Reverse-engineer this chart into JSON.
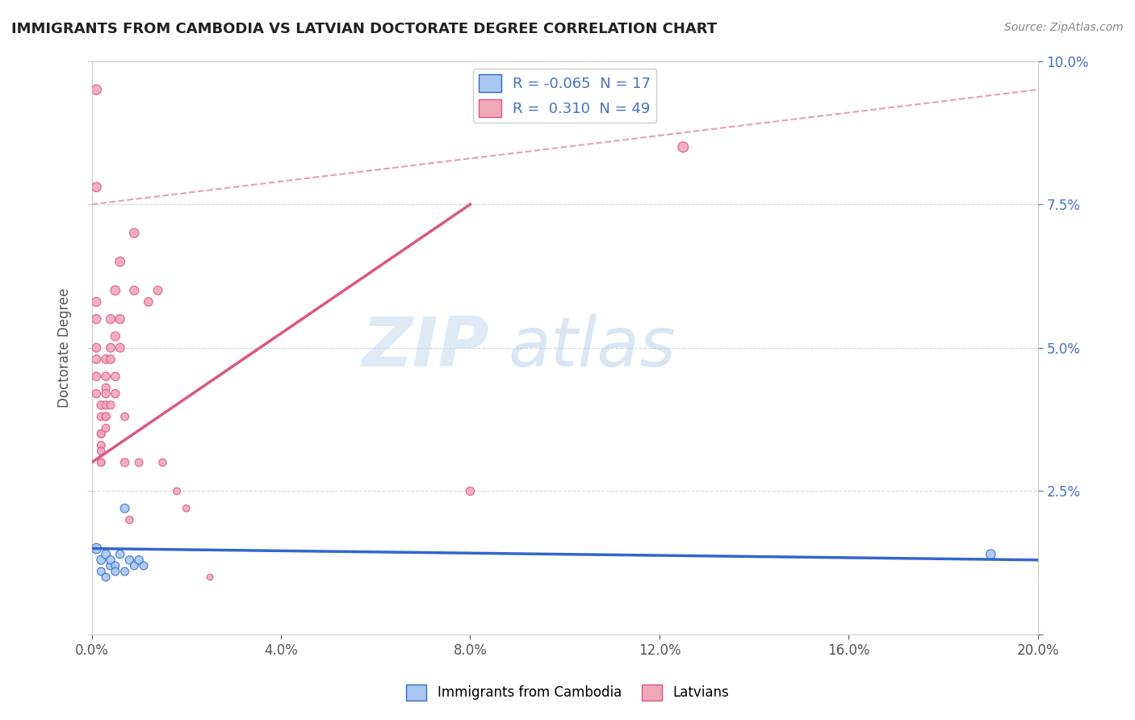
{
  "title": "IMMIGRANTS FROM CAMBODIA VS LATVIAN DOCTORATE DEGREE CORRELATION CHART",
  "source": "Source: ZipAtlas.com",
  "ylabel": "Doctorate Degree",
  "xlim": [
    0.0,
    0.2
  ],
  "ylim": [
    0.0,
    0.1
  ],
  "xticks": [
    0.0,
    0.04,
    0.08,
    0.12,
    0.16,
    0.2
  ],
  "yticks": [
    0.0,
    0.025,
    0.05,
    0.075,
    0.1
  ],
  "legend_R1": "-0.065",
  "legend_N1": "17",
  "legend_R2": "0.310",
  "legend_N2": "49",
  "blue_color": "#A8C8F0",
  "pink_color": "#F0A8B8",
  "blue_line_color": "#3366CC",
  "pink_line_color": "#DD5588",
  "dash_line_color": "#E8A0B0",
  "watermark_zip": "ZIP",
  "watermark_atlas": "atlas",
  "blue_scatter": [
    [
      0.001,
      0.015
    ],
    [
      0.002,
      0.013
    ],
    [
      0.002,
      0.011
    ],
    [
      0.003,
      0.014
    ],
    [
      0.003,
      0.01
    ],
    [
      0.004,
      0.012
    ],
    [
      0.004,
      0.013
    ],
    [
      0.005,
      0.012
    ],
    [
      0.005,
      0.011
    ],
    [
      0.006,
      0.014
    ],
    [
      0.007,
      0.011
    ],
    [
      0.007,
      0.022
    ],
    [
      0.008,
      0.013
    ],
    [
      0.009,
      0.012
    ],
    [
      0.01,
      0.013
    ],
    [
      0.011,
      0.012
    ],
    [
      0.19,
      0.014
    ]
  ],
  "pink_scatter": [
    [
      0.001,
      0.095
    ],
    [
      0.001,
      0.078
    ],
    [
      0.001,
      0.058
    ],
    [
      0.001,
      0.055
    ],
    [
      0.001,
      0.05
    ],
    [
      0.001,
      0.048
    ],
    [
      0.001,
      0.045
    ],
    [
      0.001,
      0.042
    ],
    [
      0.002,
      0.04
    ],
    [
      0.002,
      0.038
    ],
    [
      0.002,
      0.035
    ],
    [
      0.002,
      0.035
    ],
    [
      0.002,
      0.033
    ],
    [
      0.002,
      0.032
    ],
    [
      0.002,
      0.03
    ],
    [
      0.002,
      0.03
    ],
    [
      0.003,
      0.048
    ],
    [
      0.003,
      0.045
    ],
    [
      0.003,
      0.043
    ],
    [
      0.003,
      0.042
    ],
    [
      0.003,
      0.04
    ],
    [
      0.003,
      0.038
    ],
    [
      0.003,
      0.038
    ],
    [
      0.003,
      0.036
    ],
    [
      0.004,
      0.055
    ],
    [
      0.004,
      0.05
    ],
    [
      0.004,
      0.048
    ],
    [
      0.004,
      0.04
    ],
    [
      0.005,
      0.06
    ],
    [
      0.005,
      0.052
    ],
    [
      0.005,
      0.045
    ],
    [
      0.005,
      0.042
    ],
    [
      0.006,
      0.065
    ],
    [
      0.006,
      0.055
    ],
    [
      0.006,
      0.05
    ],
    [
      0.007,
      0.03
    ],
    [
      0.007,
      0.038
    ],
    [
      0.008,
      0.02
    ],
    [
      0.009,
      0.07
    ],
    [
      0.009,
      0.06
    ],
    [
      0.01,
      0.03
    ],
    [
      0.012,
      0.058
    ],
    [
      0.014,
      0.06
    ],
    [
      0.015,
      0.03
    ],
    [
      0.018,
      0.025
    ],
    [
      0.02,
      0.022
    ],
    [
      0.025,
      0.01
    ],
    [
      0.125,
      0.085
    ],
    [
      0.08,
      0.025
    ]
  ],
  "blue_scatter_sizes": [
    80,
    60,
    50,
    60,
    50,
    55,
    55,
    50,
    50,
    55,
    50,
    60,
    55,
    50,
    55,
    50,
    70
  ],
  "pink_scatter_sizes": [
    80,
    70,
    65,
    65,
    60,
    60,
    58,
    55,
    55,
    52,
    50,
    50,
    48,
    48,
    45,
    45,
    60,
    58,
    55,
    55,
    52,
    50,
    50,
    48,
    65,
    60,
    58,
    52,
    70,
    65,
    58,
    55,
    72,
    65,
    60,
    55,
    50,
    45,
    68,
    62,
    50,
    58,
    60,
    45,
    40,
    38,
    30,
    85,
    55
  ]
}
